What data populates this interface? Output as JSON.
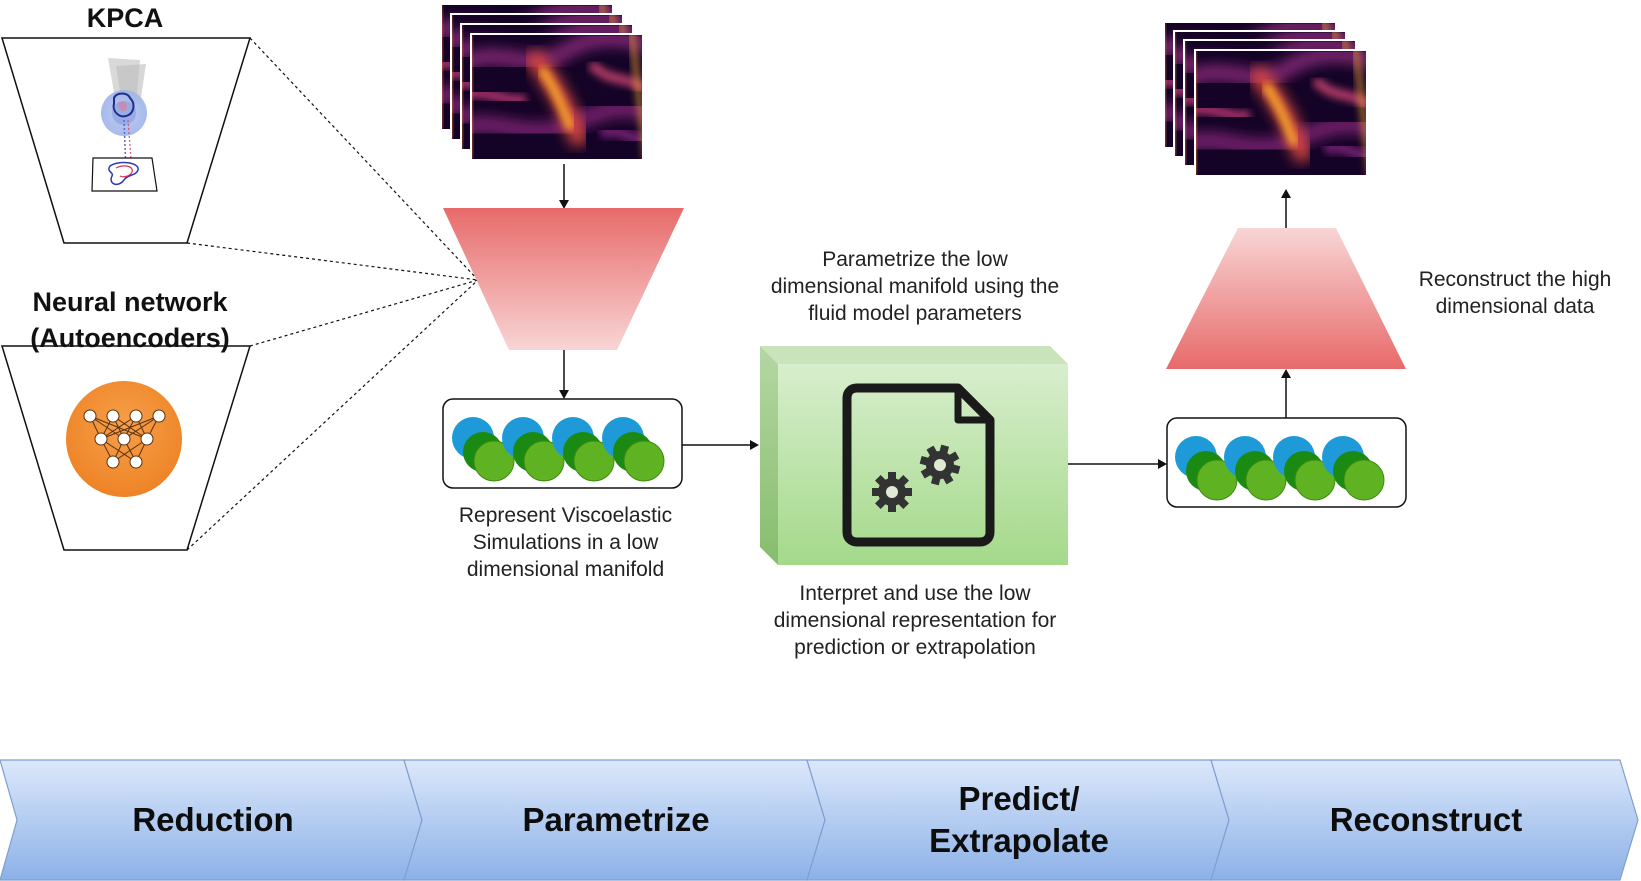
{
  "methods": {
    "kpca_title": "KPCA",
    "nn_title_line1": "Neural network",
    "nn_title_line2": "(Autoencoders)"
  },
  "captions": {
    "represent": [
      "Represent Viscoelastic",
      "Simulations in a low",
      "dimensional manifold"
    ],
    "parametrize": [
      "Parametrize the low",
      "dimensional manifold using the",
      "fluid model parameters"
    ],
    "interpret": [
      "Interpret and use the low",
      "dimensional representation for",
      "prediction or extrapolation"
    ],
    "reconstruct": [
      "Reconstruct the high",
      "dimensional data"
    ]
  },
  "icons": {
    "gear_document": "gear-document-icon",
    "neural_network": "neural-network-icon",
    "kpca_projection": "kpca-projection-icon"
  },
  "stages": [
    {
      "label_line1": "Reduction",
      "label_line2": ""
    },
    {
      "label_line1": "Parametrize",
      "label_line2": ""
    },
    {
      "label_line1": "Predict/",
      "label_line2": "Extrapolate"
    },
    {
      "label_line1": "Reconstruct",
      "label_line2": ""
    }
  ],
  "colors": {
    "encoder_top": "#e86a6a",
    "encoder_bottom": "#f8d2d2",
    "model_box": "#a9d98e",
    "latent_blue": "#1f9ad8",
    "latent_green_dark": "#1a8a12",
    "latent_green_light": "#5fb322",
    "nn_orange": "#f0892e",
    "stage_top": "#dbe7fa",
    "stage_bottom": "#8db2e8"
  }
}
